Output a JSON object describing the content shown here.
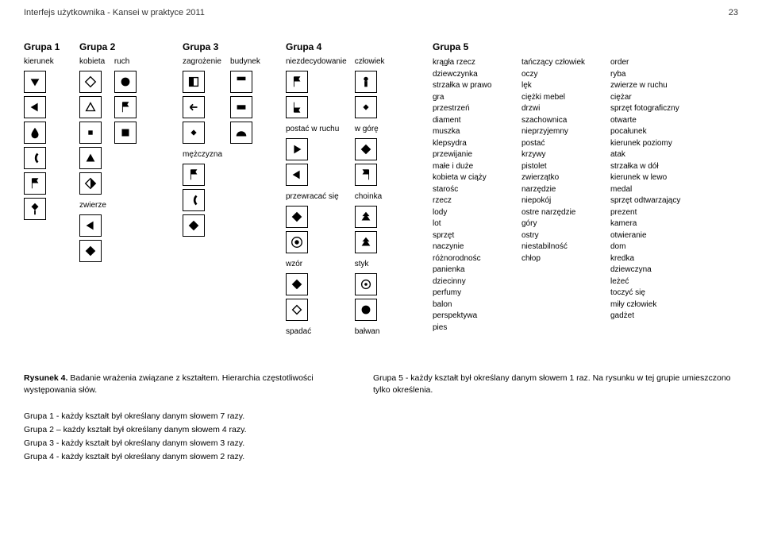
{
  "header": {
    "title": "Interfejs użytkownika - Kansei w praktyce 2011",
    "page": "23"
  },
  "groups": [
    {
      "title": "Grupa 1",
      "cols": [
        {
          "label": "kierunek",
          "icons": [
            "tri-down",
            "tri-left",
            "drop",
            "arc-left",
            "flag",
            "diamond-stem"
          ]
        }
      ]
    },
    {
      "title": "Grupa 2",
      "cols": [
        {
          "label": "kobieta",
          "icons": [
            "diamond",
            "tri-up-hollow",
            "sq-small",
            "tri-up-fill",
            "diamond-half"
          ],
          "then_label": "zwierze",
          "then_icons": [
            "tri-left-fill",
            "diamond-fill"
          ]
        },
        {
          "label": "ruch",
          "icons": [
            "circle-fill",
            "flag",
            "sq-fill"
          ]
        }
      ]
    },
    {
      "title": "Grupa 3",
      "cols": [
        {
          "label": "zagrożenie",
          "icons": [
            "sq-split",
            "arrow-left",
            "diamond-small"
          ],
          "then_label": "mężczyzna",
          "then_icons": [
            "flag",
            "arc-left",
            "diamond-fill"
          ]
        },
        {
          "label": "budynek",
          "icons": [
            "bar-top",
            "bar-mid",
            "half-circle"
          ]
        }
      ]
    },
    {
      "title": "Grupa 4",
      "cols": [
        {
          "label": "niezdecydowanie",
          "icons": [
            "flag",
            "flag-down"
          ],
          "then_label": "postać w ruchu",
          "then_icons": [
            "tri-right-fill",
            "tri-left-fill"
          ],
          "then_label2": "przewracać się",
          "then_icons2": [
            "diamond-fill",
            "target"
          ],
          "then_label3": "wzór",
          "then_icons3": [
            "diamond-fill",
            "diamond-hollow"
          ],
          "then_label4": "spadać"
        },
        {
          "label": "człowiek",
          "icons": [
            "person",
            "diamond-small"
          ],
          "then_label": "w górę",
          "then_icons": [
            "diamond-fill",
            "flag-left"
          ],
          "then_label2": "choinka",
          "then_icons2": [
            "tree",
            "tree"
          ],
          "then_label3": "styk",
          "then_icons3": [
            "circle-dot",
            "circle-fill"
          ],
          "then_label4": "bałwan"
        }
      ]
    },
    {
      "title": "Grupa 5",
      "lists": [
        [
          "krągła rzecz",
          "dziewczynka",
          "strzałka w prawo",
          "gra",
          "przestrzeń",
          "diament",
          "muszka",
          "klepsydra",
          "przewijanie",
          "małe i duże",
          "kobieta w ciąży",
          "starośc",
          "rzecz",
          "lody",
          "lot",
          "sprzęt",
          "naczynie",
          "różnorodnośc",
          "panienka",
          "dziecinny",
          "perfumy",
          "balon",
          "perspektywa",
          "pies"
        ],
        [
          "tańczący człowiek",
          "oczy",
          "lęk",
          "ciężki mebel",
          "drzwi",
          "szachownica",
          "nieprzyjemny",
          "postać",
          "krzywy",
          "pistolet",
          "zwierzątko",
          "narzędzie",
          "niepokój",
          "ostre narzędzie",
          "góry",
          "ostry",
          "niestabilność",
          "chłop"
        ],
        [
          "order",
          "ryba",
          "zwierze w ruchu",
          "ciężar",
          "sprzęt fotograficzny",
          "otwarte",
          "pocałunek",
          "kierunek poziomy",
          "atak",
          "strzałka w dół",
          "kierunek w lewo",
          "medal",
          "sprzęt odtwarzający",
          "prezent",
          "kamera",
          "otwieranie",
          "dom",
          "kredka",
          "dziewczyna",
          "leżeć",
          "toczyć się",
          "miły człowiek",
          "gadżet"
        ]
      ]
    }
  ],
  "caption": {
    "left_bold": "Rysunek 4.",
    "left_rest": " Badanie wrażenia związane z kształtem. Hierarchia częstotliwości występowania słów.",
    "right": "Grupa 5 - każdy kształt był określany danym słowem 1 raz. Na rysunku w tej grupie umieszczono tylko określenia."
  },
  "notes": [
    "Grupa 1 - każdy kształt był określany danym słowem 7 razy.",
    "Grupa 2 – każdy kształt był określany danym słowem 4 razy.",
    "Grupa 3 - każdy kształt był określany danym słowem 3 razy.",
    "Grupa 4 - każdy kształt był określany danym słowem 2 razy."
  ]
}
